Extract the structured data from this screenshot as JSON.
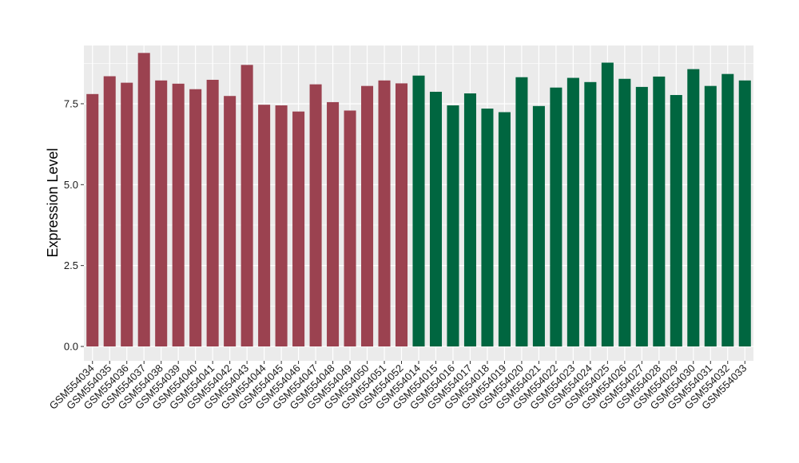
{
  "chart_data": {
    "type": "bar",
    "title": "",
    "xlabel": "",
    "ylabel": "Expression Level",
    "ylim": [
      0,
      9.3
    ],
    "yticks": [
      0,
      2.5,
      5,
      7.5
    ],
    "ytick_labels": [
      "0.0",
      "2.5",
      "5.0",
      "7.5"
    ],
    "grid": true,
    "legend": "none",
    "categories": [
      "GSM554034",
      "GSM554035",
      "GSM554036",
      "GSM554037",
      "GSM554038",
      "GSM554039",
      "GSM554040",
      "GSM554041",
      "GSM554042",
      "GSM554043",
      "GSM554044",
      "GSM554045",
      "GSM554046",
      "GSM554047",
      "GSM554048",
      "GSM554049",
      "GSM554050",
      "GSM554051",
      "GSM554052",
      "GSM554014",
      "GSM554015",
      "GSM554016",
      "GSM554017",
      "GSM554018",
      "GSM554019",
      "GSM554020",
      "GSM554021",
      "GSM554022",
      "GSM554023",
      "GSM554024",
      "GSM554025",
      "GSM554026",
      "GSM554027",
      "GSM554028",
      "GSM554029",
      "GSM554030",
      "GSM554031",
      "GSM554032",
      "GSM554033"
    ],
    "values": [
      7.8,
      8.35,
      8.15,
      9.07,
      8.22,
      8.12,
      7.95,
      8.24,
      7.74,
      8.7,
      7.47,
      7.45,
      7.26,
      8.1,
      7.55,
      7.29,
      8.05,
      8.22,
      8.13,
      8.37,
      7.87,
      7.45,
      7.82,
      7.35,
      7.24,
      8.32,
      7.43,
      8.0,
      8.3,
      8.17,
      8.77,
      8.27,
      8.02,
      8.34,
      7.77,
      8.57,
      8.05,
      8.42,
      8.22
    ],
    "groups": [
      0,
      0,
      0,
      0,
      0,
      0,
      0,
      0,
      0,
      0,
      0,
      0,
      0,
      0,
      0,
      0,
      0,
      0,
      0,
      1,
      1,
      1,
      1,
      1,
      1,
      1,
      1,
      1,
      1,
      1,
      1,
      1,
      1,
      1,
      1,
      1,
      1,
      1,
      1
    ],
    "group_colors": [
      "#9b4250",
      "#006640"
    ],
    "panel_background": "#ebebeb",
    "gridline_color": "#ffffff"
  }
}
